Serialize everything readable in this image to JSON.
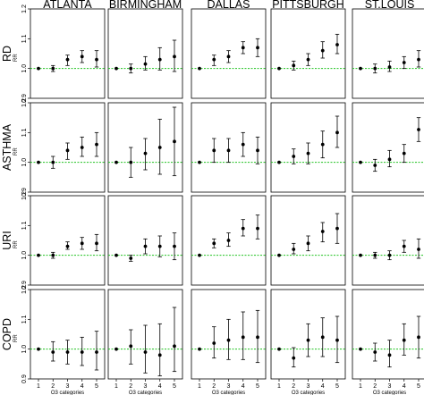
{
  "chart_data": {
    "type": "scatter",
    "columns": [
      "ATLANTA",
      "BIRMINGHAM",
      "DALLAS",
      "PITTSBURGH",
      "ST.LOUIS"
    ],
    "rows": [
      "RD",
      "ASTHMA",
      "URI",
      "COPD"
    ],
    "y_axis_label": "RR",
    "x_axis_label": "O3 categories",
    "x_categories": [
      1,
      2,
      3,
      4,
      5
    ],
    "ylim": [
      0.9,
      1.2
    ],
    "y_ticks": [
      "0.9",
      "1.0",
      "1.1",
      "1.2"
    ],
    "reference_line": 1.0,
    "panels": [
      {
        "row": "RD",
        "column": "ATLANTA",
        "points": [
          {
            "x": 1,
            "est": 1.0,
            "lo": 1.0,
            "hi": 1.0
          },
          {
            "x": 2,
            "est": 1.0,
            "lo": 0.99,
            "hi": 1.01
          },
          {
            "x": 3,
            "est": 1.03,
            "lo": 1.01,
            "hi": 1.045
          },
          {
            "x": 4,
            "est": 1.04,
            "lo": 1.02,
            "hi": 1.06
          },
          {
            "x": 5,
            "est": 1.03,
            "lo": 1.005,
            "hi": 1.06
          }
        ]
      },
      {
        "row": "RD",
        "column": "BIRMINGHAM",
        "points": [
          {
            "x": 1,
            "est": 1.0,
            "lo": 1.0,
            "hi": 1.0
          },
          {
            "x": 2,
            "est": 1.0,
            "lo": 0.985,
            "hi": 1.015
          },
          {
            "x": 3,
            "est": 1.015,
            "lo": 0.995,
            "hi": 1.04
          },
          {
            "x": 4,
            "est": 1.03,
            "lo": 0.995,
            "hi": 1.07
          },
          {
            "x": 5,
            "est": 1.04,
            "lo": 0.99,
            "hi": 1.095
          }
        ]
      },
      {
        "row": "RD",
        "column": "DALLAS",
        "points": [
          {
            "x": 1,
            "est": 1.0,
            "lo": 1.0,
            "hi": 1.0
          },
          {
            "x": 2,
            "est": 1.03,
            "lo": 1.01,
            "hi": 1.045
          },
          {
            "x": 3,
            "est": 1.04,
            "lo": 1.02,
            "hi": 1.06
          },
          {
            "x": 4,
            "est": 1.07,
            "lo": 1.05,
            "hi": 1.09
          },
          {
            "x": 5,
            "est": 1.07,
            "lo": 1.04,
            "hi": 1.1
          }
        ]
      },
      {
        "row": "RD",
        "column": "PITTSBURGH",
        "points": [
          {
            "x": 1,
            "est": 1.0,
            "lo": 1.0,
            "hi": 1.0
          },
          {
            "x": 2,
            "est": 1.01,
            "lo": 0.995,
            "hi": 1.025
          },
          {
            "x": 3,
            "est": 1.03,
            "lo": 1.01,
            "hi": 1.05
          },
          {
            "x": 4,
            "est": 1.06,
            "lo": 1.035,
            "hi": 1.09
          },
          {
            "x": 5,
            "est": 1.08,
            "lo": 1.05,
            "hi": 1.115
          }
        ]
      },
      {
        "row": "RD",
        "column": "ST.LOUIS",
        "points": [
          {
            "x": 1,
            "est": 1.0,
            "lo": 1.0,
            "hi": 1.0
          },
          {
            "x": 2,
            "est": 1.0,
            "lo": 0.985,
            "hi": 1.015
          },
          {
            "x": 3,
            "est": 1.005,
            "lo": 0.99,
            "hi": 1.025
          },
          {
            "x": 4,
            "est": 1.02,
            "lo": 1.0,
            "hi": 1.04
          },
          {
            "x": 5,
            "est": 1.03,
            "lo": 1.005,
            "hi": 1.06
          }
        ]
      },
      {
        "row": "ASTHMA",
        "column": "ATLANTA",
        "points": [
          {
            "x": 1,
            "est": 1.0,
            "lo": 1.0,
            "hi": 1.0
          },
          {
            "x": 2,
            "est": 1.0,
            "lo": 0.98,
            "hi": 1.02
          },
          {
            "x": 3,
            "est": 1.04,
            "lo": 1.01,
            "hi": 1.065
          },
          {
            "x": 4,
            "est": 1.05,
            "lo": 1.02,
            "hi": 1.085
          },
          {
            "x": 5,
            "est": 1.06,
            "lo": 1.02,
            "hi": 1.1
          }
        ]
      },
      {
        "row": "ASTHMA",
        "column": "BIRMINGHAM",
        "points": [
          {
            "x": 1,
            "est": 1.0,
            "lo": 1.0,
            "hi": 1.0
          },
          {
            "x": 2,
            "est": 1.0,
            "lo": 0.95,
            "hi": 1.05
          },
          {
            "x": 3,
            "est": 1.03,
            "lo": 0.975,
            "hi": 1.08
          },
          {
            "x": 4,
            "est": 1.05,
            "lo": 0.96,
            "hi": 1.145
          },
          {
            "x": 5,
            "est": 1.07,
            "lo": 0.955,
            "hi": 1.185
          }
        ]
      },
      {
        "row": "ASTHMA",
        "column": "DALLAS",
        "points": [
          {
            "x": 1,
            "est": 1.0,
            "lo": 1.0,
            "hi": 1.0
          },
          {
            "x": 2,
            "est": 1.04,
            "lo": 1.0,
            "hi": 1.08
          },
          {
            "x": 3,
            "est": 1.04,
            "lo": 1.0,
            "hi": 1.08
          },
          {
            "x": 4,
            "est": 1.06,
            "lo": 1.02,
            "hi": 1.1
          },
          {
            "x": 5,
            "est": 1.04,
            "lo": 0.995,
            "hi": 1.085
          }
        ]
      },
      {
        "row": "ASTHMA",
        "column": "PITTSBURGH",
        "points": [
          {
            "x": 1,
            "est": 1.0,
            "lo": 1.0,
            "hi": 1.0
          },
          {
            "x": 2,
            "est": 1.02,
            "lo": 0.995,
            "hi": 1.045
          },
          {
            "x": 3,
            "est": 1.03,
            "lo": 0.995,
            "hi": 1.065
          },
          {
            "x": 4,
            "est": 1.06,
            "lo": 1.015,
            "hi": 1.105
          },
          {
            "x": 5,
            "est": 1.1,
            "lo": 1.05,
            "hi": 1.155
          }
        ]
      },
      {
        "row": "ASTHMA",
        "column": "ST.LOUIS",
        "points": [
          {
            "x": 1,
            "est": 1.0,
            "lo": 1.0,
            "hi": 1.0
          },
          {
            "x": 2,
            "est": 0.99,
            "lo": 0.97,
            "hi": 1.01
          },
          {
            "x": 3,
            "est": 1.01,
            "lo": 0.985,
            "hi": 1.04
          },
          {
            "x": 4,
            "est": 1.03,
            "lo": 1.0,
            "hi": 1.06
          },
          {
            "x": 5,
            "est": 1.11,
            "lo": 1.07,
            "hi": 1.15
          }
        ]
      },
      {
        "row": "URI",
        "column": "ATLANTA",
        "points": [
          {
            "x": 1,
            "est": 1.0,
            "lo": 1.0,
            "hi": 1.0
          },
          {
            "x": 2,
            "est": 1.0,
            "lo": 0.99,
            "hi": 1.01
          },
          {
            "x": 3,
            "est": 1.03,
            "lo": 1.02,
            "hi": 1.045
          },
          {
            "x": 4,
            "est": 1.04,
            "lo": 1.02,
            "hi": 1.06
          },
          {
            "x": 5,
            "est": 1.04,
            "lo": 1.015,
            "hi": 1.07
          }
        ]
      },
      {
        "row": "URI",
        "column": "BIRMINGHAM",
        "points": [
          {
            "x": 1,
            "est": 1.0,
            "lo": 1.0,
            "hi": 1.0
          },
          {
            "x": 2,
            "est": 0.99,
            "lo": 0.98,
            "hi": 1.0
          },
          {
            "x": 3,
            "est": 1.03,
            "lo": 1.005,
            "hi": 1.055
          },
          {
            "x": 4,
            "est": 1.03,
            "lo": 0.995,
            "hi": 1.065
          },
          {
            "x": 5,
            "est": 1.03,
            "lo": 0.985,
            "hi": 1.075
          }
        ]
      },
      {
        "row": "URI",
        "column": "DALLAS",
        "points": [
          {
            "x": 1,
            "est": 1.0,
            "lo": 1.0,
            "hi": 1.0
          },
          {
            "x": 2,
            "est": 1.04,
            "lo": 1.025,
            "hi": 1.055
          },
          {
            "x": 3,
            "est": 1.05,
            "lo": 1.03,
            "hi": 1.075
          },
          {
            "x": 4,
            "est": 1.09,
            "lo": 1.065,
            "hi": 1.12
          },
          {
            "x": 5,
            "est": 1.09,
            "lo": 1.055,
            "hi": 1.135
          }
        ]
      },
      {
        "row": "URI",
        "column": "PITTSBURGH",
        "points": [
          {
            "x": 1,
            "est": 1.0,
            "lo": 1.0,
            "hi": 1.0
          },
          {
            "x": 2,
            "est": 1.02,
            "lo": 1.005,
            "hi": 1.04
          },
          {
            "x": 3,
            "est": 1.04,
            "lo": 1.015,
            "hi": 1.065
          },
          {
            "x": 4,
            "est": 1.08,
            "lo": 1.045,
            "hi": 1.11
          },
          {
            "x": 5,
            "est": 1.09,
            "lo": 1.04,
            "hi": 1.14
          }
        ]
      },
      {
        "row": "URI",
        "column": "ST.LOUIS",
        "points": [
          {
            "x": 1,
            "est": 1.0,
            "lo": 1.0,
            "hi": 1.0
          },
          {
            "x": 2,
            "est": 1.0,
            "lo": 0.99,
            "hi": 1.01
          },
          {
            "x": 3,
            "est": 1.0,
            "lo": 0.985,
            "hi": 1.015
          },
          {
            "x": 4,
            "est": 1.03,
            "lo": 1.01,
            "hi": 1.05
          },
          {
            "x": 5,
            "est": 1.02,
            "lo": 0.99,
            "hi": 1.055
          }
        ]
      },
      {
        "row": "COPD",
        "column": "ATLANTA",
        "points": [
          {
            "x": 1,
            "est": 1.0,
            "lo": 1.0,
            "hi": 1.0
          },
          {
            "x": 2,
            "est": 0.99,
            "lo": 0.96,
            "hi": 1.025
          },
          {
            "x": 3,
            "est": 0.99,
            "lo": 0.95,
            "hi": 1.03
          },
          {
            "x": 4,
            "est": 0.99,
            "lo": 0.945,
            "hi": 1.04
          },
          {
            "x": 5,
            "est": 0.99,
            "lo": 0.93,
            "hi": 1.06
          }
        ]
      },
      {
        "row": "COPD",
        "column": "BIRMINGHAM",
        "points": [
          {
            "x": 1,
            "est": 1.0,
            "lo": 1.0,
            "hi": 1.0
          },
          {
            "x": 2,
            "est": 1.01,
            "lo": 0.95,
            "hi": 1.065
          },
          {
            "x": 3,
            "est": 0.99,
            "lo": 0.92,
            "hi": 1.08
          },
          {
            "x": 4,
            "est": 0.98,
            "lo": 0.91,
            "hi": 1.085
          },
          {
            "x": 5,
            "est": 1.01,
            "lo": 0.925,
            "hi": 1.14
          }
        ]
      },
      {
        "row": "COPD",
        "column": "DALLAS",
        "points": [
          {
            "x": 1,
            "est": 1.0,
            "lo": 1.0,
            "hi": 1.0
          },
          {
            "x": 2,
            "est": 1.02,
            "lo": 0.97,
            "hi": 1.075
          },
          {
            "x": 3,
            "est": 1.03,
            "lo": 0.965,
            "hi": 1.1
          },
          {
            "x": 4,
            "est": 1.04,
            "lo": 0.965,
            "hi": 1.125
          },
          {
            "x": 5,
            "est": 1.04,
            "lo": 0.955,
            "hi": 1.13
          }
        ]
      },
      {
        "row": "COPD",
        "column": "PITTSBURGH",
        "points": [
          {
            "x": 1,
            "est": 1.0,
            "lo": 1.0,
            "hi": 1.0
          },
          {
            "x": 2,
            "est": 0.97,
            "lo": 0.94,
            "hi": 1.005
          },
          {
            "x": 3,
            "est": 1.03,
            "lo": 0.975,
            "hi": 1.085
          },
          {
            "x": 4,
            "est": 1.04,
            "lo": 0.975,
            "hi": 1.105
          },
          {
            "x": 5,
            "est": 1.03,
            "lo": 0.955,
            "hi": 1.11
          }
        ]
      },
      {
        "row": "COPD",
        "column": "ST.LOUIS",
        "points": [
          {
            "x": 1,
            "est": 1.0,
            "lo": 1.0,
            "hi": 1.0
          },
          {
            "x": 2,
            "est": 0.99,
            "lo": 0.96,
            "hi": 1.02
          },
          {
            "x": 3,
            "est": 0.98,
            "lo": 0.94,
            "hi": 1.03
          },
          {
            "x": 4,
            "est": 1.03,
            "lo": 0.98,
            "hi": 1.085
          },
          {
            "x": 5,
            "est": 1.04,
            "lo": 0.97,
            "hi": 1.11
          }
        ]
      }
    ]
  },
  "colors": {
    "point": "#000000",
    "error_bar": "#000000",
    "reference_line": "#22c322",
    "panel_border": "#000000"
  }
}
